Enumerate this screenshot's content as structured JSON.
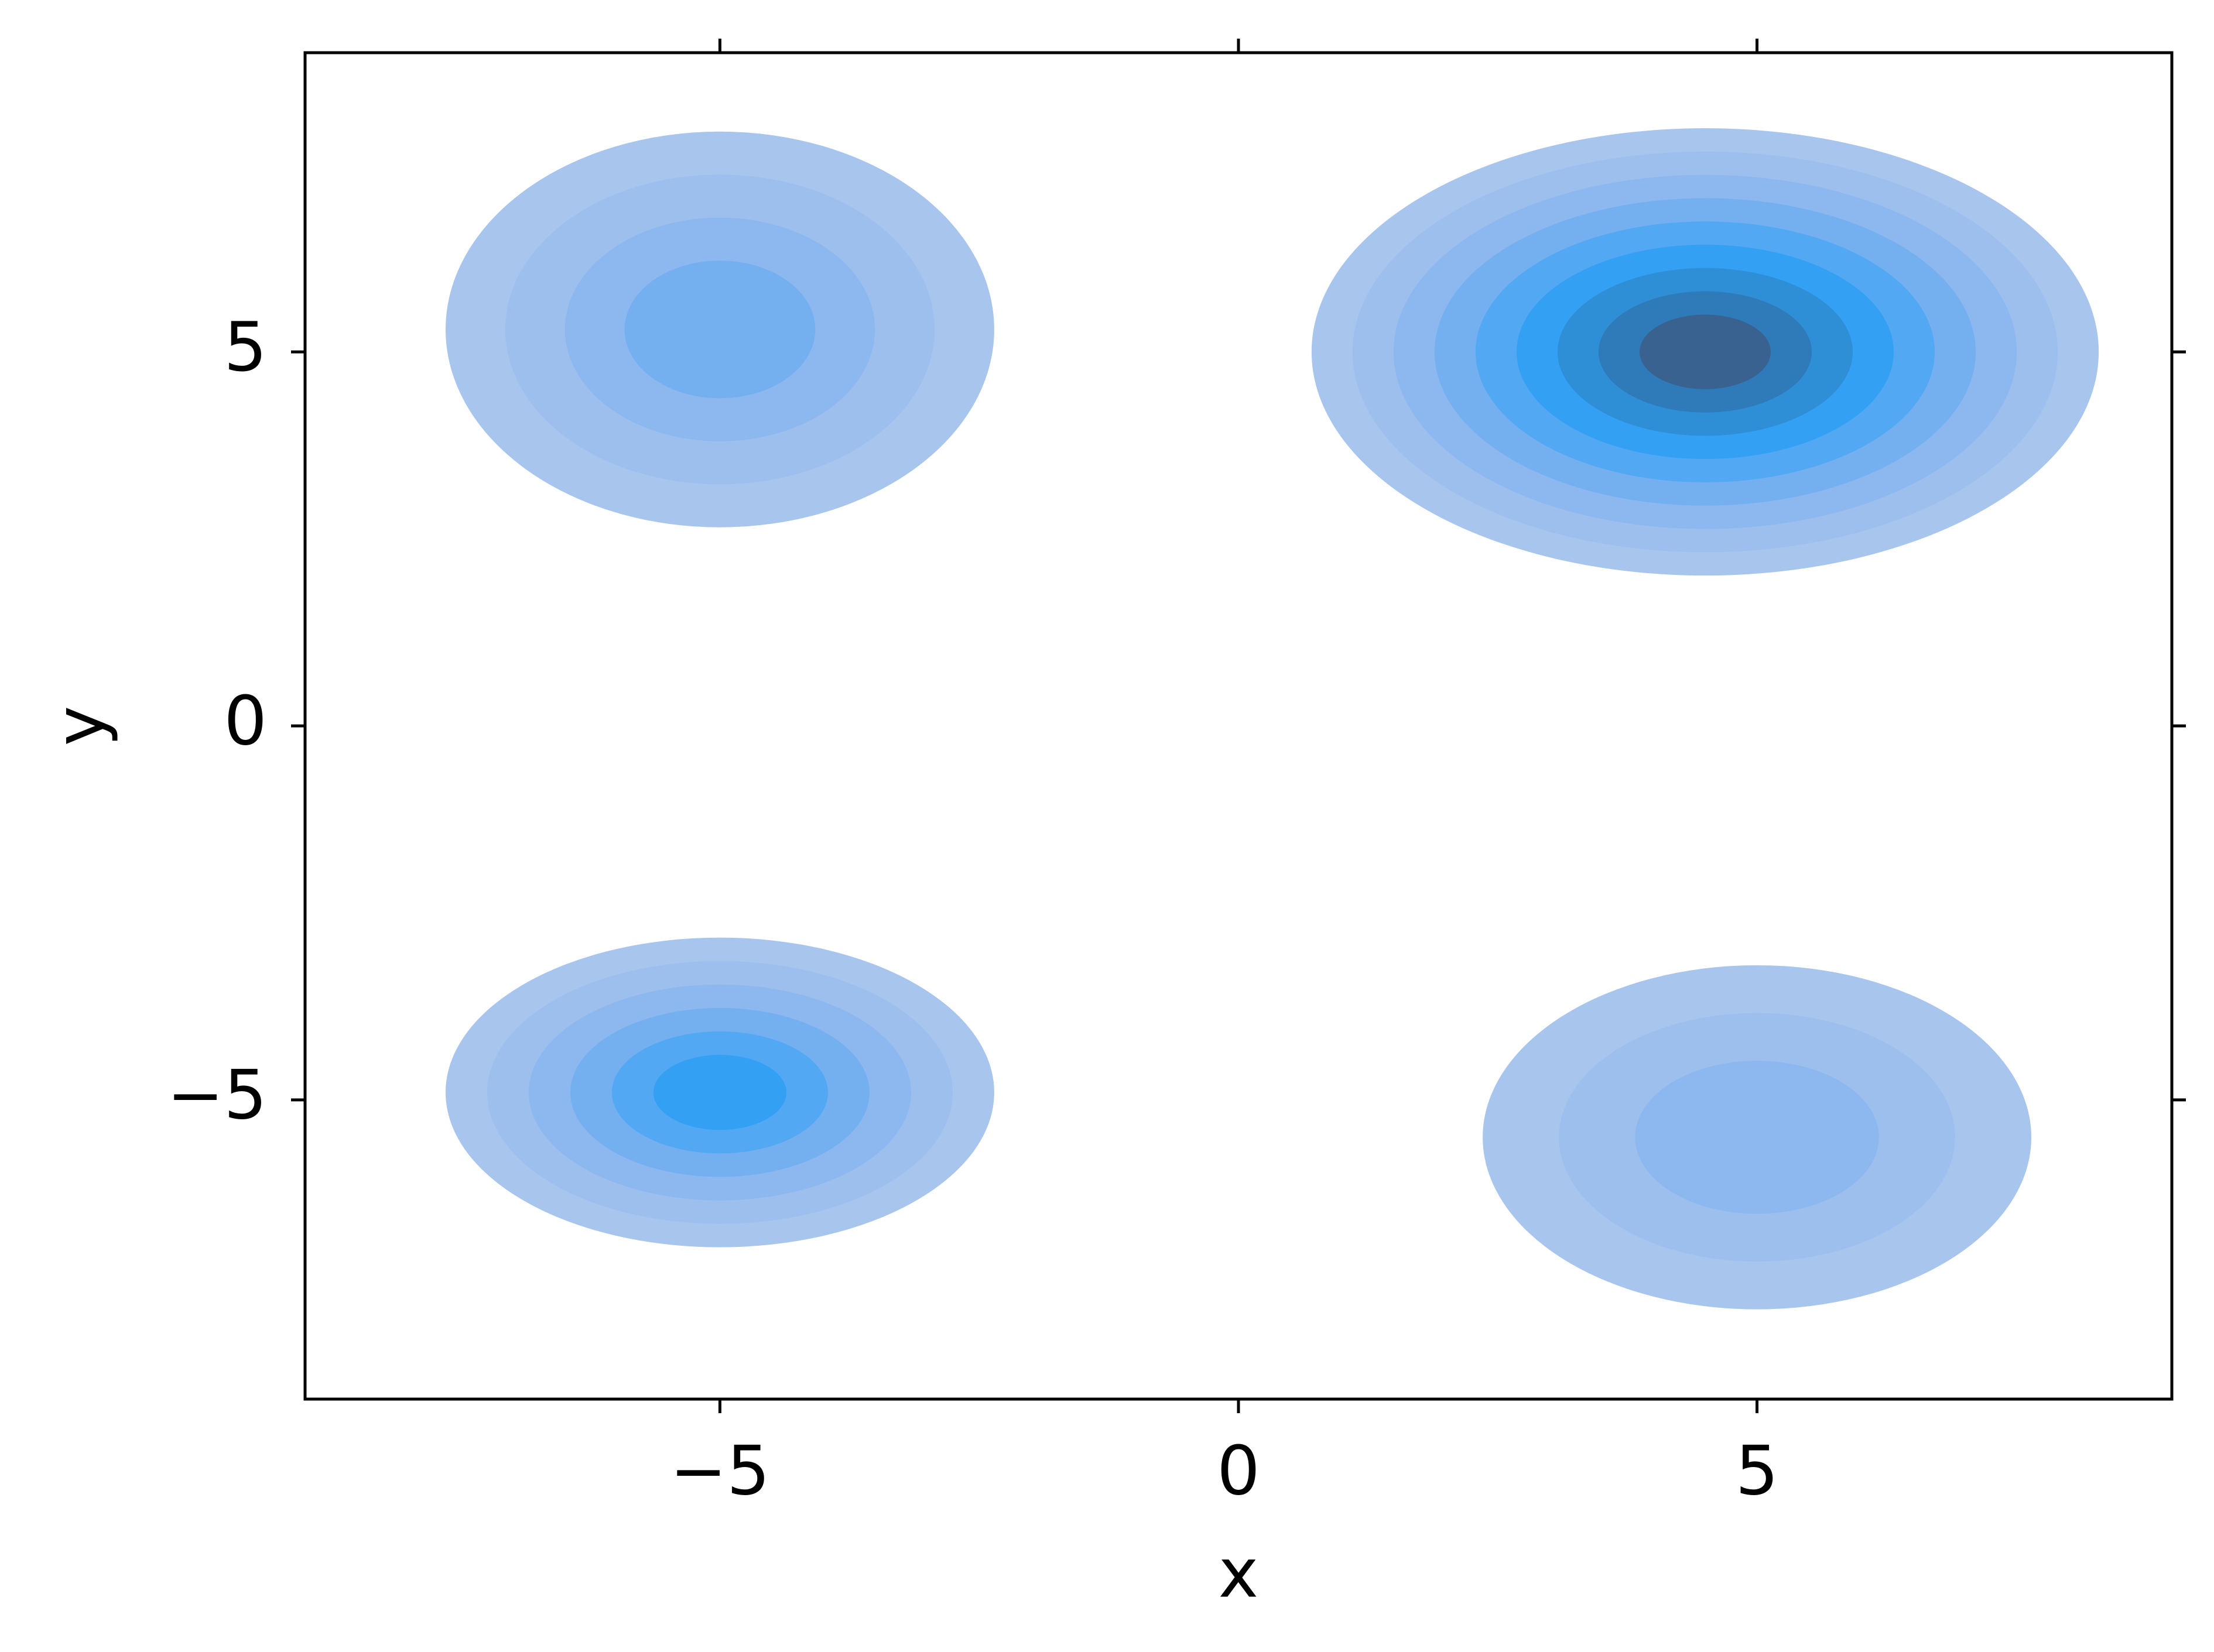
{
  "chart_data": {
    "type": "kde",
    "xlabel": "x",
    "ylabel": "y",
    "xlim": [
      -9,
      9
    ],
    "ylim": [
      -9,
      9
    ],
    "xticks": [
      {
        "value": -5,
        "label": "−5"
      },
      0,
      5
    ],
    "yticks": [
      {
        "value": -5,
        "label": "−5"
      },
      0,
      5
    ],
    "level_colors": [
      "#a8c5ee",
      "#9cbfee",
      "#8cb8ef",
      "#74b0f0",
      "#52a8f2",
      "#33a0f3",
      "#2e8ed6",
      "#2f7ab8",
      "#3a6290"
    ],
    "clusters": [
      {
        "x": 4.5,
        "y": 5.0,
        "sx": 1.65,
        "sy": 1.3,
        "levels": 9
      },
      {
        "x": -5.0,
        "y": 5.3,
        "sx": 1.15,
        "sy": 1.15,
        "levels": 4
      },
      {
        "x": -5.0,
        "y": -4.9,
        "sx": 1.15,
        "sy": 0.9,
        "levels": 6
      },
      {
        "x": 5.0,
        "y": -5.5,
        "sx": 1.15,
        "sy": 1.0,
        "levels": 3
      }
    ]
  }
}
